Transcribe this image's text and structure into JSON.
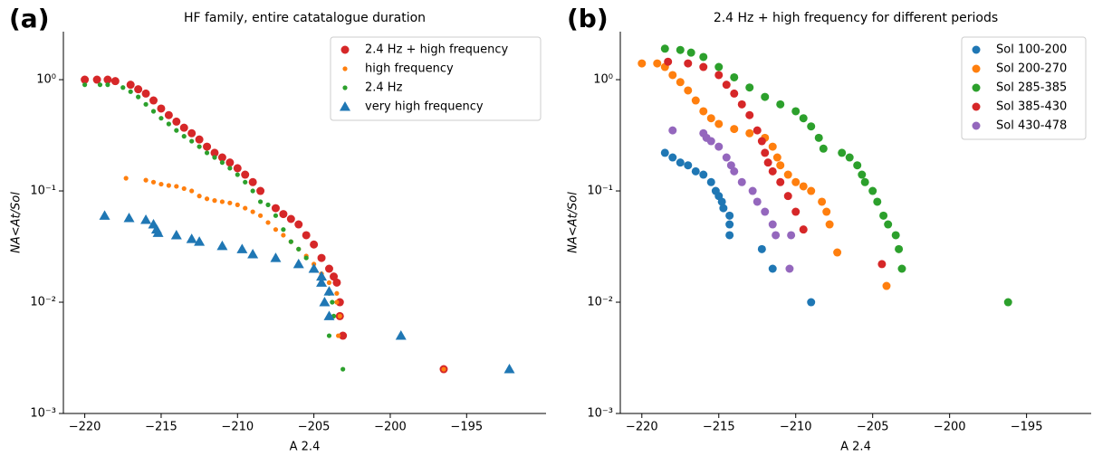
{
  "chart_data": [
    {
      "type": "scatter",
      "panel_label": "(a)",
      "title": "HF family, entire catatalogue duration",
      "xlabel": "A 2.4",
      "ylabel": "NA<At/Sol",
      "log_y": true,
      "legend": "upper right",
      "xlim": [
        -221.4,
        -189.8
      ],
      "ylim": [
        0.001,
        2.7
      ],
      "xticks": [
        {
          "value": -220,
          "label": "−220"
        },
        {
          "value": -215,
          "label": "−215"
        },
        {
          "value": -210,
          "label": "−210"
        },
        {
          "value": -205,
          "label": "−205"
        },
        {
          "value": -200,
          "label": "−200"
        },
        {
          "value": -195,
          "label": "−195"
        }
      ],
      "yticks": [
        {
          "value": 0.001,
          "label": "10⁻³"
        },
        {
          "value": 0.01,
          "label": "10⁻²"
        },
        {
          "value": 0.1,
          "label": "10⁻¹"
        },
        {
          "value": 1,
          "label": "10⁰"
        }
      ],
      "series": [
        {
          "name": "2.4 Hz + high frequency",
          "color": "#d62728",
          "marker": "o",
          "x": [
            -220,
            -219.2,
            -218.5,
            -218,
            -217,
            -216.5,
            -216,
            -215.5,
            -215,
            -214.5,
            -214,
            -213.5,
            -213,
            -212.5,
            -212,
            -211.5,
            -211,
            -210.5,
            -210,
            -209.5,
            -209,
            -208.5,
            -207.5,
            -207,
            -206.5,
            -206,
            -205.5,
            -205,
            -204.5,
            -204,
            -203.7,
            -203.5,
            -203.3,
            -203.3,
            -203.1,
            -196.5
          ],
          "values": [
            1.0,
            1.0,
            1.0,
            0.97,
            0.9,
            0.82,
            0.75,
            0.65,
            0.55,
            0.48,
            0.42,
            0.37,
            0.33,
            0.29,
            0.25,
            0.22,
            0.2,
            0.18,
            0.16,
            0.14,
            0.12,
            0.1,
            0.07,
            0.062,
            0.056,
            0.05,
            0.04,
            0.033,
            0.025,
            0.02,
            0.017,
            0.015,
            0.01,
            0.0075,
            0.005,
            0.0025
          ]
        },
        {
          "name": "high frequency",
          "color": "#ff7f0e",
          "marker": ".",
          "x": [
            -217.3,
            -216,
            -215.5,
            -215,
            -214.5,
            -214,
            -213.5,
            -213,
            -212.5,
            -212,
            -211.5,
            -211,
            -210.5,
            -210,
            -209.5,
            -209,
            -208.5,
            -208,
            -207.5,
            -207,
            -206.5,
            -206,
            -205.5,
            -205,
            -204.5,
            -204,
            -203.5,
            -203.5,
            -203.3,
            -203.4,
            -196.5
          ],
          "values": [
            0.13,
            0.125,
            0.12,
            0.115,
            0.112,
            0.11,
            0.105,
            0.1,
            0.09,
            0.085,
            0.082,
            0.08,
            0.078,
            0.075,
            0.07,
            0.065,
            0.06,
            0.052,
            0.045,
            0.04,
            0.035,
            0.03,
            0.026,
            0.022,
            0.018,
            0.015,
            0.012,
            0.01,
            0.0075,
            0.005,
            0.0025
          ]
        },
        {
          "name": "2.4 Hz",
          "color": "#2ca02c",
          "marker": ".",
          "x": [
            -220,
            -219,
            -218.5,
            -217.5,
            -217,
            -216.5,
            -216,
            -215.5,
            -215,
            -214.5,
            -214,
            -213.5,
            -213,
            -212.5,
            -212,
            -211.5,
            -211,
            -210.5,
            -210,
            -209.5,
            -209,
            -208.5,
            -208,
            -207.5,
            -207,
            -206.5,
            -206,
            -205.5,
            -205,
            -204.5,
            -204,
            -203.8,
            -203.7,
            -204,
            -203.1
          ],
          "values": [
            0.9,
            0.9,
            0.9,
            0.85,
            0.78,
            0.7,
            0.6,
            0.52,
            0.45,
            0.4,
            0.35,
            0.31,
            0.28,
            0.25,
            0.22,
            0.2,
            0.18,
            0.16,
            0.14,
            0.12,
            0.1,
            0.08,
            0.075,
            0.06,
            0.045,
            0.035,
            0.03,
            0.025,
            0.02,
            0.015,
            0.012,
            0.01,
            0.0075,
            0.005,
            0.0025
          ]
        },
        {
          "name": "very high frequency",
          "color": "#1f77b4",
          "marker": "^",
          "x": [
            -218.7,
            -217.1,
            -216,
            -215.5,
            -215.3,
            -215.2,
            -214,
            -213,
            -212.5,
            -211,
            -209.7,
            -209,
            -207.5,
            -206,
            -205,
            -204.5,
            -204.5,
            -204,
            -204.3,
            -204,
            -199.3,
            -192.2
          ],
          "values": [
            0.06,
            0.057,
            0.055,
            0.05,
            0.045,
            0.042,
            0.04,
            0.037,
            0.035,
            0.032,
            0.03,
            0.027,
            0.025,
            0.022,
            0.02,
            0.017,
            0.015,
            0.0125,
            0.01,
            0.0075,
            0.005,
            0.0025
          ]
        }
      ]
    },
    {
      "type": "scatter",
      "panel_label": "(b)",
      "title": "2.4 Hz + high frequency for different periods",
      "xlabel": "A 2.4",
      "ylabel": "NA<At/Sol",
      "log_y": true,
      "legend": "upper right",
      "xlim": [
        -221.4,
        -190.8
      ],
      "ylim": [
        0.001,
        2.7
      ],
      "xticks": [
        {
          "value": -220,
          "label": "−220"
        },
        {
          "value": -215,
          "label": "−215"
        },
        {
          "value": -210,
          "label": "−210"
        },
        {
          "value": -205,
          "label": "−205"
        },
        {
          "value": -200,
          "label": "−200"
        },
        {
          "value": -195,
          "label": "−195"
        }
      ],
      "yticks": [
        {
          "value": 0.001,
          "label": "10⁻³"
        },
        {
          "value": 0.01,
          "label": "10⁻²"
        },
        {
          "value": 0.1,
          "label": "10⁻¹"
        },
        {
          "value": 1,
          "label": "10⁰"
        }
      ],
      "series": [
        {
          "name": "Sol 100-200",
          "color": "#1f77b4",
          "marker": "o",
          "x": [
            -218.5,
            -218,
            -217.5,
            -217,
            -216.5,
            -216,
            -215.5,
            -215.2,
            -215,
            -214.8,
            -214.7,
            -214.3,
            -214.3,
            -214.3,
            -212.2,
            -211.5,
            -209
          ],
          "values": [
            0.22,
            0.2,
            0.18,
            0.17,
            0.15,
            0.14,
            0.12,
            0.1,
            0.09,
            0.08,
            0.07,
            0.06,
            0.05,
            0.04,
            0.03,
            0.02,
            0.01
          ]
        },
        {
          "name": "Sol 200-270",
          "color": "#ff7f0e",
          "marker": "o",
          "x": [
            -220,
            -219,
            -218.5,
            -218,
            -217.5,
            -217,
            -216.5,
            -216,
            -215.5,
            -215,
            -214,
            -213,
            -212,
            -211.5,
            -211.2,
            -211,
            -210.5,
            -210,
            -209.5,
            -209,
            -208.3,
            -208,
            -207.8,
            -207.3,
            -204.1
          ],
          "values": [
            1.4,
            1.4,
            1.3,
            1.1,
            0.95,
            0.8,
            0.65,
            0.52,
            0.45,
            0.4,
            0.36,
            0.33,
            0.3,
            0.25,
            0.2,
            0.17,
            0.14,
            0.12,
            0.11,
            0.1,
            0.08,
            0.065,
            0.05,
            0.028,
            0.014
          ]
        },
        {
          "name": "Sol 285-385",
          "color": "#2ca02c",
          "marker": "o",
          "x": [
            -218.5,
            -217.5,
            -216.8,
            -216,
            -215,
            -214,
            -213,
            -212,
            -211,
            -210,
            -209.5,
            -209,
            -208.5,
            -208.2,
            -207,
            -206.5,
            -206,
            -205.7,
            -205.5,
            -205,
            -204.7,
            -204.3,
            -204,
            -203.5,
            -203.3,
            -203.1,
            -196.2
          ],
          "values": [
            1.9,
            1.85,
            1.75,
            1.6,
            1.3,
            1.05,
            0.85,
            0.7,
            0.6,
            0.52,
            0.45,
            0.38,
            0.3,
            0.24,
            0.22,
            0.2,
            0.17,
            0.14,
            0.12,
            0.1,
            0.08,
            0.06,
            0.05,
            0.04,
            0.03,
            0.02,
            0.01
          ]
        },
        {
          "name": "Sol 385-430",
          "color": "#d62728",
          "marker": "o",
          "x": [
            -218.3,
            -217,
            -216,
            -215,
            -214.5,
            -214,
            -213.5,
            -213,
            -212.5,
            -212.2,
            -212,
            -211.8,
            -211.5,
            -211,
            -210.5,
            -210,
            -209.5,
            -204.4
          ],
          "values": [
            1.45,
            1.4,
            1.3,
            1.1,
            0.9,
            0.75,
            0.6,
            0.48,
            0.35,
            0.28,
            0.22,
            0.18,
            0.15,
            0.12,
            0.09,
            0.065,
            0.045,
            0.022
          ]
        },
        {
          "name": "Sol 430-478",
          "color": "#9467bd",
          "marker": "o",
          "x": [
            -218,
            -216,
            -215.8,
            -215.5,
            -215,
            -214.5,
            -214.2,
            -214,
            -213.5,
            -212.8,
            -212.5,
            -212,
            -211.5,
            -211.3,
            -210.3,
            -210.4
          ],
          "values": [
            0.35,
            0.33,
            0.3,
            0.28,
            0.25,
            0.2,
            0.17,
            0.15,
            0.12,
            0.1,
            0.08,
            0.065,
            0.05,
            0.04,
            0.04,
            0.02
          ]
        }
      ]
    }
  ]
}
